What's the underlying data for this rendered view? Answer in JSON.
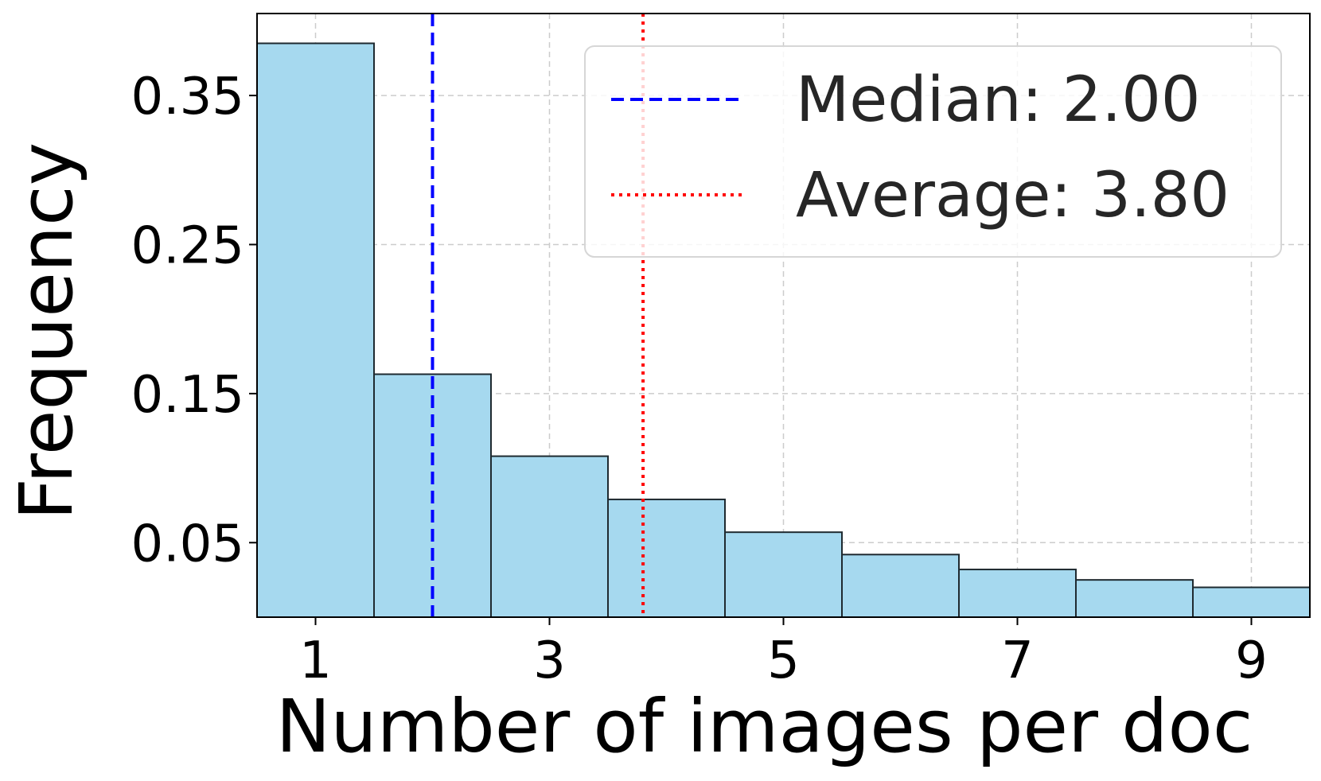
{
  "chart_data": {
    "type": "bar",
    "title": "",
    "xlabel": "Number of images per doc",
    "ylabel": "Frequency",
    "x": [
      1,
      2,
      3,
      4,
      5,
      6,
      7,
      8,
      9
    ],
    "values": [
      0.385,
      0.163,
      0.108,
      0.079,
      0.057,
      0.042,
      0.032,
      0.025,
      0.02
    ],
    "xlim": [
      0.5,
      9.5
    ],
    "ylim": [
      0,
      0.405
    ],
    "xticks": [
      1,
      3,
      5,
      7,
      9
    ],
    "xtick_labels": [
      "1",
      "3",
      "5",
      "7",
      "9"
    ],
    "yticks": [
      0.05,
      0.15,
      0.25,
      0.35
    ],
    "ytick_labels": [
      "0.05",
      "0.15",
      "0.25",
      "0.35"
    ],
    "grid": true,
    "bar_color": "#a6d9ef",
    "bar_edge_color": "#1f2a30",
    "reference_lines": [
      {
        "label": "Median: 2.00",
        "x": 2.0,
        "color": "#0000ff",
        "style": "dashed"
      },
      {
        "label": "Average: 3.80",
        "x": 3.8,
        "color": "#ff0000",
        "style": "dotted"
      }
    ],
    "legend": {
      "position": "top-right",
      "entries": [
        "Median: 2.00",
        "Average: 3.80"
      ]
    }
  }
}
